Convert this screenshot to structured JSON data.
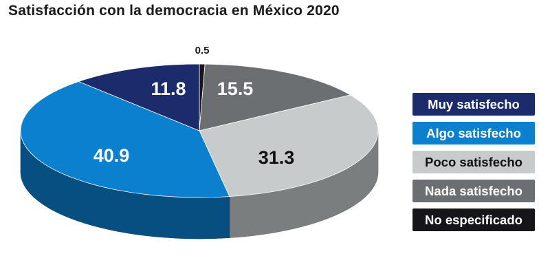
{
  "chart_data": {
    "type": "pie",
    "title": "Satisfacción con la democracia en México 2020",
    "series": [
      {
        "name": "Muy satisfecho",
        "value": 11.8,
        "label": "11.8",
        "color": "#1b2b6b",
        "text_color": "#ffffff"
      },
      {
        "name": "Algo satisfecho",
        "value": 40.9,
        "label": "40.9",
        "color": "#0b80cf",
        "text_color": "#ffffff"
      },
      {
        "name": "Poco satisfecho",
        "value": 31.3,
        "label": "31.3",
        "color": "#c7cbcc",
        "text_color": "#111111"
      },
      {
        "name": "Nada satisfecho",
        "value": 15.5,
        "label": "15.5",
        "color": "#6c6f72",
        "text_color": "#ffffff"
      },
      {
        "name": "No especificado",
        "value": 0.5,
        "label": "0.5",
        "color": "#15151a",
        "text_color": "#ffffff"
      }
    ],
    "legend_position": "right",
    "style": "3d"
  }
}
